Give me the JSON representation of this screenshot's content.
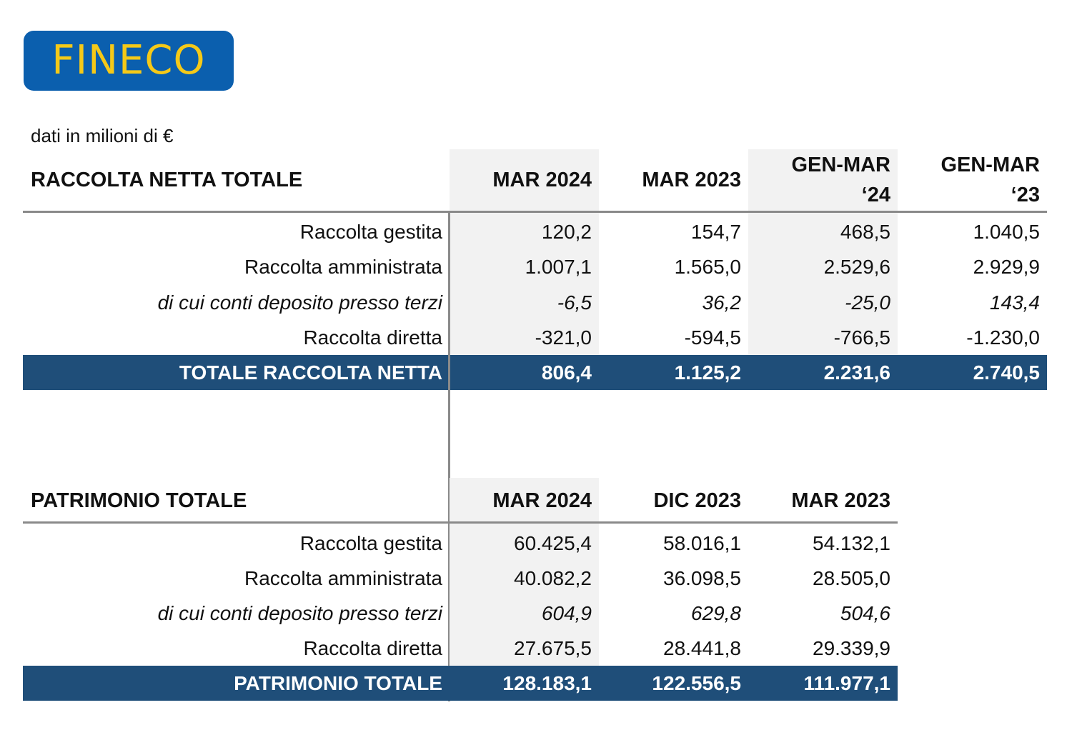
{
  "logo": {
    "text": "FINECO",
    "bg_color": "#0b5fae",
    "text_color": "#f5c918"
  },
  "units_note": "dati in milioni di €",
  "table1": {
    "title": "RACCOLTA NETTA TOTALE",
    "columns": [
      {
        "line1": "MAR 2024",
        "line2": ""
      },
      {
        "line1": "MAR 2023",
        "line2": ""
      },
      {
        "line1": "GEN-MAR",
        "line2": "‘24"
      },
      {
        "line1": "GEN-MAR",
        "line2": "‘23"
      }
    ],
    "rows": [
      {
        "label": "Raccolta gestita",
        "values": [
          "120,2",
          "154,7",
          "468,5",
          "1.040,5"
        ]
      },
      {
        "label": "Raccolta amministrata",
        "values": [
          "1.007,1",
          "1.565,0",
          "2.529,6",
          "2.929,9"
        ]
      },
      {
        "label": "di cui conti deposito presso terzi",
        "values": [
          "-6,5",
          "36,2",
          "-25,0",
          "143,4"
        ],
        "italic": true
      },
      {
        "label": "Raccolta diretta",
        "values": [
          "-321,0",
          "-594,5",
          "-766,5",
          "-1.230,0"
        ]
      }
    ],
    "total": {
      "label": "TOTALE RACCOLTA NETTA",
      "values": [
        "806,4",
        "1.125,2",
        "2.231,6",
        "2.740,5"
      ]
    }
  },
  "table2": {
    "title": "PATRIMONIO TOTALE",
    "columns": [
      "MAR 2024",
      "DIC 2023",
      "MAR 2023"
    ],
    "rows": [
      {
        "label": "Raccolta gestita",
        "values": [
          "60.425,4",
          "58.016,1",
          "54.132,1"
        ]
      },
      {
        "label": "Raccolta amministrata",
        "values": [
          "40.082,2",
          "36.098,5",
          "28.505,0"
        ]
      },
      {
        "label": "di cui conti deposito presso terzi",
        "values": [
          "604,9",
          "629,8",
          "504,6"
        ],
        "italic": true
      },
      {
        "label": "Raccolta diretta",
        "values": [
          "27.675,5",
          "28.441,8",
          "29.339,9"
        ]
      }
    ],
    "total": {
      "label": "PATRIMONIO TOTALE",
      "values": [
        "128.183,1",
        "122.556,5",
        "111.977,1"
      ]
    }
  },
  "colors": {
    "total_row_bg": "#1f4e79",
    "shade_bg": "#f2f2f2",
    "rule": "#8a8a8a"
  }
}
